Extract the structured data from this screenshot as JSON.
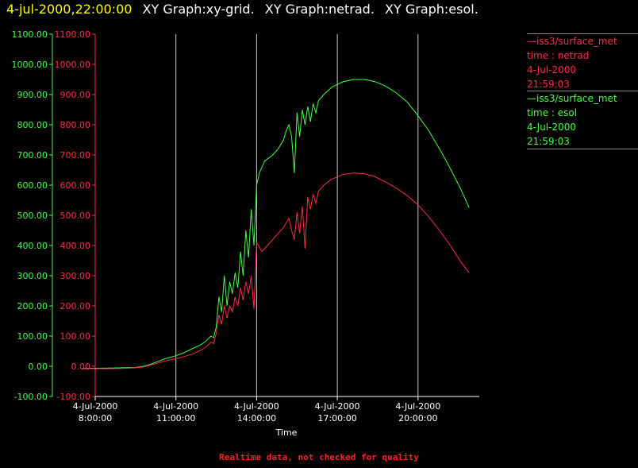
{
  "header": {
    "date": "4-jul-2000,22:00:00",
    "graphs": [
      "XY Graph:xy-grid.",
      "XY Graph:netrad.",
      "XY Graph:esol."
    ]
  },
  "legend": [
    {
      "source": "—iss3/surface_met",
      "label": "time : netrad",
      "date": "4-Jul-2000",
      "time": "21:59:03",
      "color": "#ff2a4a"
    },
    {
      "source": "—iss3/surface_met",
      "label": "time : esol",
      "date": "4-Jul-2000",
      "time": "21:59:03",
      "color": "#44ff44"
    }
  ],
  "footer": "Realtime data, not checked for quality",
  "chart_data": {
    "type": "line",
    "title": "",
    "xlabel": "Time",
    "ylabel": "",
    "x_ticks": [
      {
        "date": "4-Jul-2000",
        "time": "8:00:00",
        "hour": 8
      },
      {
        "date": "4-Jul-2000",
        "time": "11:00:00",
        "hour": 11
      },
      {
        "date": "4-Jul-2000",
        "time": "14:00:00",
        "hour": 14
      },
      {
        "date": "4-Jul-2000",
        "time": "17:00:00",
        "hour": 17
      },
      {
        "date": "4-Jul-2000",
        "time": "20:00:00",
        "hour": 20
      }
    ],
    "vertical_grid_hours": [
      11,
      14,
      17,
      20
    ],
    "xlim": [
      7.5,
      22.0
    ],
    "ylim": [
      -100,
      1100
    ],
    "y_ticks": [
      "1100.00",
      "1000.00",
      "900.00",
      "800.00",
      "700.00",
      "600.00",
      "500.00",
      "400.00",
      "300.00",
      "200.00",
      "100.00",
      "0.00",
      "-100.00"
    ],
    "axis_colors": {
      "left": "#44ff44",
      "right": "#ff2a4a",
      "x": "#ffffff"
    },
    "grid": true,
    "series": [
      {
        "name": "time : esol",
        "color": "#44ff44",
        "points": [
          [
            7.5,
            -7
          ],
          [
            8.5,
            -6
          ],
          [
            9.0,
            -5
          ],
          [
            9.5,
            -4
          ],
          [
            9.8,
            0
          ],
          [
            10.0,
            5
          ],
          [
            10.3,
            15
          ],
          [
            10.6,
            25
          ],
          [
            11.0,
            35
          ],
          [
            11.3,
            45
          ],
          [
            11.6,
            58
          ],
          [
            11.9,
            70
          ],
          [
            12.1,
            82
          ],
          [
            12.3,
            100
          ],
          [
            12.4,
            95
          ],
          [
            12.5,
            130
          ],
          [
            12.6,
            230
          ],
          [
            12.7,
            180
          ],
          [
            12.8,
            300
          ],
          [
            12.9,
            200
          ],
          [
            13.0,
            280
          ],
          [
            13.1,
            240
          ],
          [
            13.2,
            310
          ],
          [
            13.3,
            260
          ],
          [
            13.4,
            380
          ],
          [
            13.5,
            300
          ],
          [
            13.6,
            450
          ],
          [
            13.7,
            360
          ],
          [
            13.8,
            520
          ],
          [
            13.9,
            400
          ],
          [
            14.0,
            600
          ],
          [
            14.1,
            640
          ],
          [
            14.3,
            680
          ],
          [
            14.6,
            700
          ],
          [
            14.8,
            720
          ],
          [
            15.0,
            750
          ],
          [
            15.1,
            780
          ],
          [
            15.2,
            800
          ],
          [
            15.3,
            760
          ],
          [
            15.4,
            640
          ],
          [
            15.5,
            840
          ],
          [
            15.6,
            760
          ],
          [
            15.7,
            850
          ],
          [
            15.8,
            800
          ],
          [
            15.9,
            860
          ],
          [
            16.0,
            810
          ],
          [
            16.1,
            870
          ],
          [
            16.2,
            840
          ],
          [
            16.3,
            880
          ],
          [
            16.5,
            900
          ],
          [
            16.8,
            925
          ],
          [
            17.2,
            942
          ],
          [
            17.6,
            950
          ],
          [
            18.0,
            950
          ],
          [
            18.4,
            943
          ],
          [
            18.8,
            928
          ],
          [
            19.2,
            905
          ],
          [
            19.6,
            875
          ],
          [
            20.0,
            830
          ],
          [
            20.4,
            780
          ],
          [
            20.8,
            720
          ],
          [
            21.2,
            655
          ],
          [
            21.6,
            585
          ],
          [
            21.9,
            525
          ]
        ]
      },
      {
        "name": "time : netrad",
        "color": "#ff2a4a",
        "points": [
          [
            7.5,
            -8
          ],
          [
            8.5,
            -8
          ],
          [
            9.0,
            -7
          ],
          [
            9.5,
            -5
          ],
          [
            9.8,
            -2
          ],
          [
            10.0,
            3
          ],
          [
            10.3,
            10
          ],
          [
            10.6,
            18
          ],
          [
            11.0,
            25
          ],
          [
            11.3,
            32
          ],
          [
            11.6,
            40
          ],
          [
            11.9,
            52
          ],
          [
            12.1,
            62
          ],
          [
            12.3,
            80
          ],
          [
            12.4,
            75
          ],
          [
            12.5,
            110
          ],
          [
            12.6,
            170
          ],
          [
            12.7,
            140
          ],
          [
            12.8,
            200
          ],
          [
            12.9,
            160
          ],
          [
            13.0,
            200
          ],
          [
            13.1,
            180
          ],
          [
            13.2,
            230
          ],
          [
            13.3,
            200
          ],
          [
            13.4,
            260
          ],
          [
            13.5,
            220
          ],
          [
            13.6,
            280
          ],
          [
            13.7,
            240
          ],
          [
            13.8,
            300
          ],
          [
            13.9,
            190
          ],
          [
            14.0,
            410
          ],
          [
            14.2,
            380
          ],
          [
            14.4,
            400
          ],
          [
            14.7,
            430
          ],
          [
            15.0,
            460
          ],
          [
            15.2,
            490
          ],
          [
            15.3,
            450
          ],
          [
            15.4,
            420
          ],
          [
            15.5,
            510
          ],
          [
            15.6,
            440
          ],
          [
            15.7,
            530
          ],
          [
            15.8,
            390
          ],
          [
            15.9,
            560
          ],
          [
            16.0,
            520
          ],
          [
            16.1,
            570
          ],
          [
            16.2,
            540
          ],
          [
            16.3,
            580
          ],
          [
            16.5,
            600
          ],
          [
            16.8,
            620
          ],
          [
            17.2,
            635
          ],
          [
            17.6,
            640
          ],
          [
            18.0,
            638
          ],
          [
            18.4,
            628
          ],
          [
            18.8,
            610
          ],
          [
            19.2,
            590
          ],
          [
            19.6,
            565
          ],
          [
            20.0,
            535
          ],
          [
            20.4,
            495
          ],
          [
            20.8,
            450
          ],
          [
            21.2,
            400
          ],
          [
            21.6,
            345
          ],
          [
            21.9,
            310
          ]
        ]
      }
    ]
  }
}
